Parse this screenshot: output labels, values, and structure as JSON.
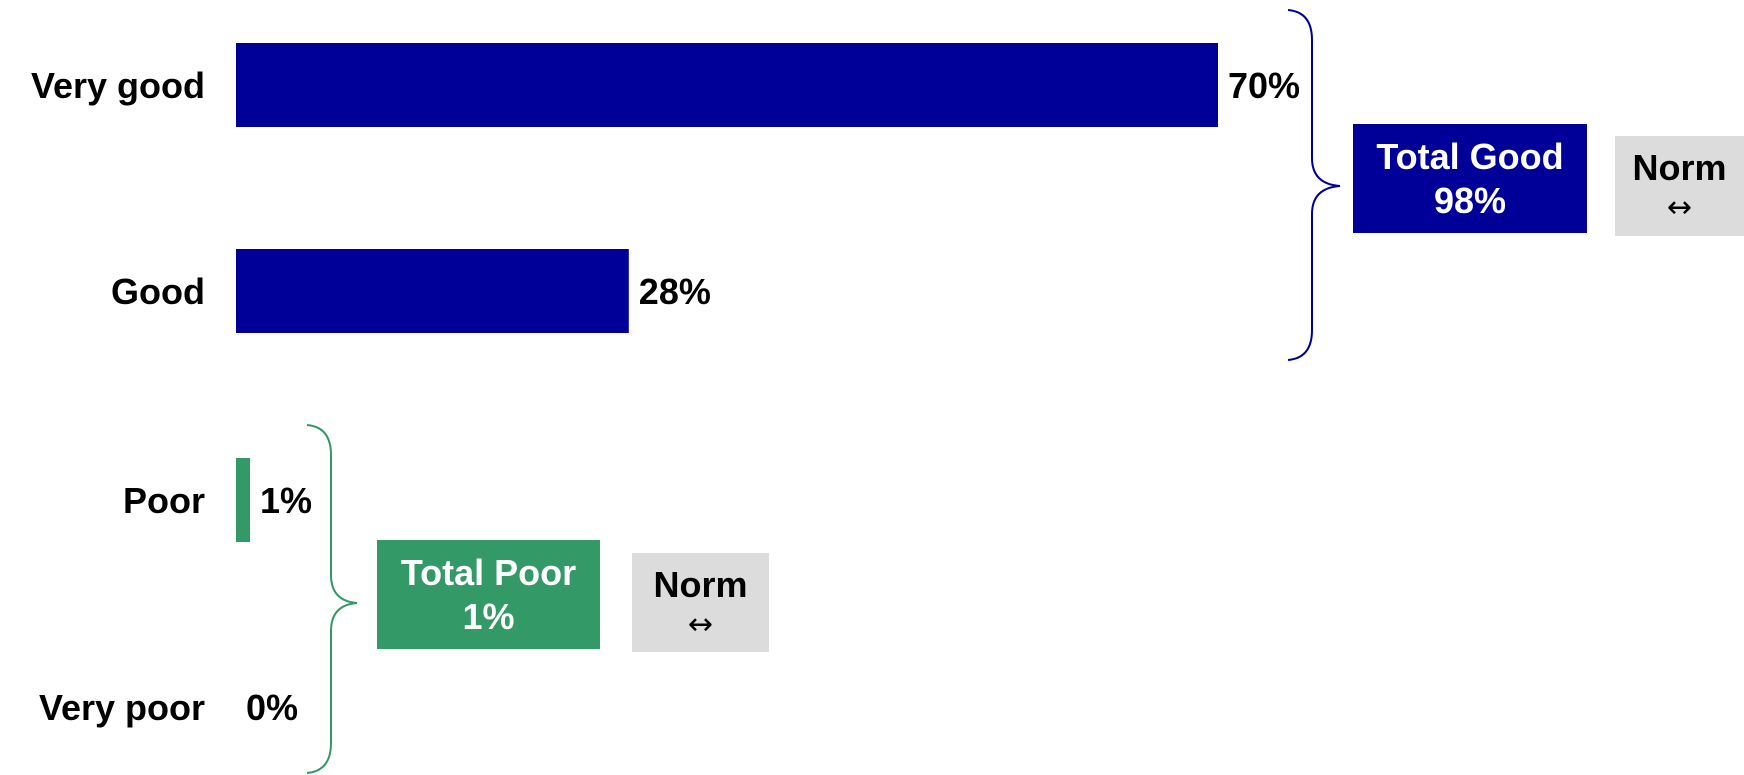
{
  "chart_data": {
    "type": "bar",
    "orientation": "horizontal",
    "categories": [
      "Very good",
      "Good",
      "Poor",
      "Very poor"
    ],
    "values": [
      70,
      28,
      1,
      0
    ],
    "value_labels": [
      "70%",
      "28%",
      "1%",
      "0%"
    ],
    "xlim": [
      0,
      100
    ],
    "colors": {
      "good": "#000099",
      "poor": "#339966",
      "norm": "#dcdcdc"
    },
    "groups": [
      {
        "key": "good",
        "categories": [
          "Very good",
          "Good"
        ],
        "total_label": "Total Good",
        "total_value": "98%",
        "norm_label": "Norm",
        "norm_icon": "↔"
      },
      {
        "key": "poor",
        "categories": [
          "Poor",
          "Very poor"
        ],
        "total_label": "Total Poor",
        "total_value": "1%",
        "norm_label": "Norm",
        "norm_icon": "↔"
      }
    ]
  }
}
